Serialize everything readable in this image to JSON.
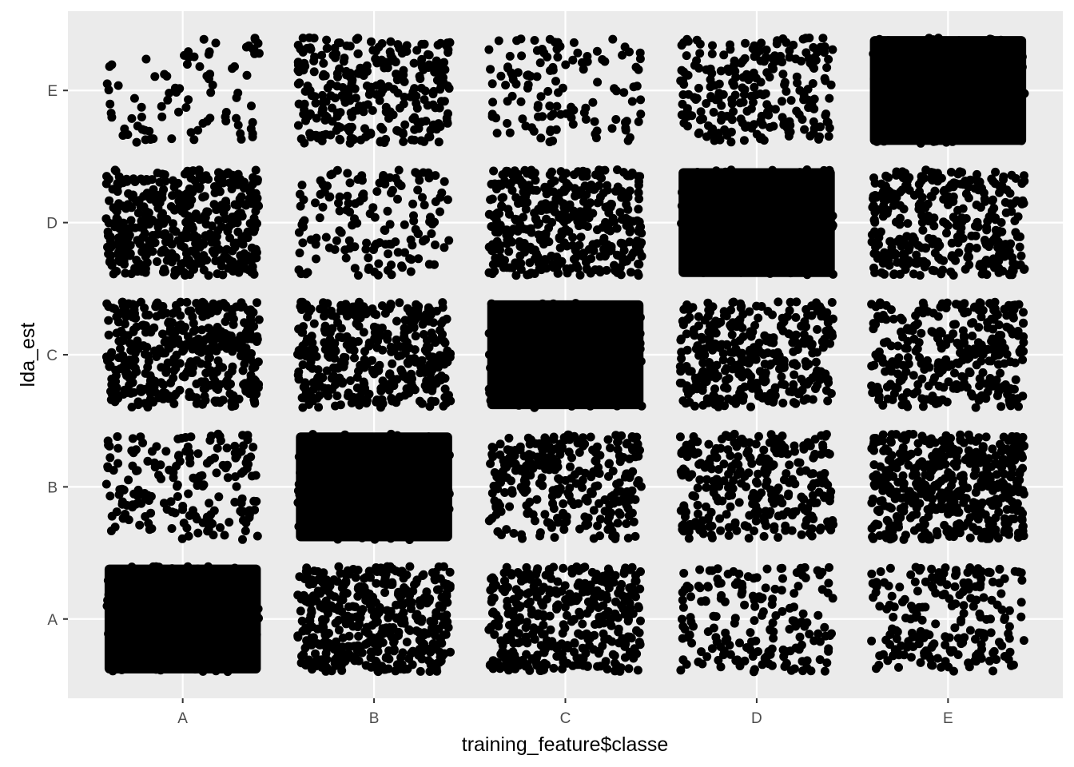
{
  "chart_data": {
    "type": "scatter",
    "xlabel": "training_feature$classe",
    "ylabel": "lda_est",
    "x_categories": [
      "A",
      "B",
      "C",
      "D",
      "E"
    ],
    "y_categories": [
      "A",
      "B",
      "C",
      "D",
      "E"
    ],
    "jitter": 0.4,
    "grid": true,
    "legend": "none",
    "colors": {
      "panel": "#ebebeb",
      "grid": "#ffffff",
      "point": "#000000",
      "tick_text": "#4d4d4d",
      "tick_mark": "#333333"
    },
    "cells": [
      {
        "x": "A",
        "y": "A",
        "density": 1.0
      },
      {
        "x": "A",
        "y": "B",
        "density": 0.25
      },
      {
        "x": "A",
        "y": "C",
        "density": 0.7
      },
      {
        "x": "A",
        "y": "D",
        "density": 0.7
      },
      {
        "x": "A",
        "y": "E",
        "density": 0.08
      },
      {
        "x": "B",
        "y": "A",
        "density": 0.7
      },
      {
        "x": "B",
        "y": "B",
        "density": 1.0
      },
      {
        "x": "B",
        "y": "C",
        "density": 0.6
      },
      {
        "x": "B",
        "y": "D",
        "density": 0.2
      },
      {
        "x": "B",
        "y": "E",
        "density": 0.45
      },
      {
        "x": "C",
        "y": "A",
        "density": 0.6
      },
      {
        "x": "C",
        "y": "B",
        "density": 0.45
      },
      {
        "x": "C",
        "y": "C",
        "density": 1.0
      },
      {
        "x": "C",
        "y": "D",
        "density": 0.65
      },
      {
        "x": "C",
        "y": "E",
        "density": 0.15
      },
      {
        "x": "D",
        "y": "A",
        "density": 0.25
      },
      {
        "x": "D",
        "y": "B",
        "density": 0.45
      },
      {
        "x": "D",
        "y": "C",
        "density": 0.55
      },
      {
        "x": "D",
        "y": "D",
        "density": 1.0
      },
      {
        "x": "D",
        "y": "E",
        "density": 0.35
      },
      {
        "x": "E",
        "y": "A",
        "density": 0.3
      },
      {
        "x": "E",
        "y": "B",
        "density": 0.75
      },
      {
        "x": "E",
        "y": "C",
        "density": 0.5
      },
      {
        "x": "E",
        "y": "D",
        "density": 0.55
      },
      {
        "x": "E",
        "y": "E",
        "density": 1.0
      }
    ]
  }
}
